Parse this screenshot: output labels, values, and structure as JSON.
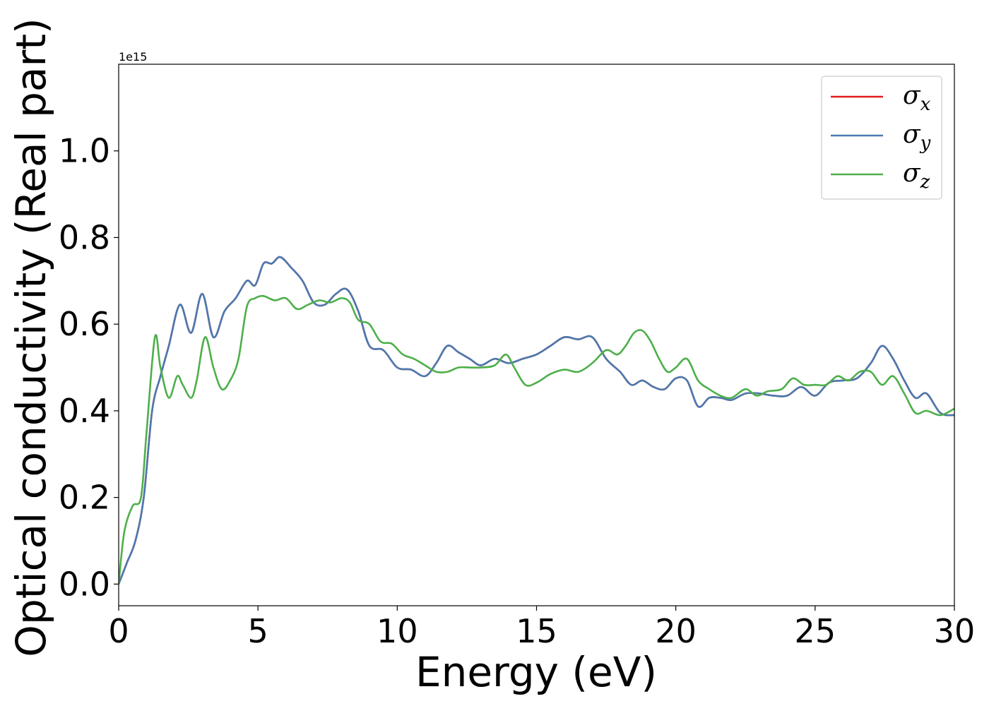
{
  "chart_data": {
    "type": "line",
    "xlabel": "Energy (eV)",
    "ylabel": "Optical conductivity (Real part)",
    "offset_text": "1e15",
    "xlim": [
      0,
      30
    ],
    "ylim": [
      -0.05,
      1.2
    ],
    "xticks": [
      0,
      5,
      10,
      15,
      20,
      25,
      30
    ],
    "xtick_labels": [
      "0",
      "5",
      "10",
      "15",
      "20",
      "25",
      "30"
    ],
    "yticks": [
      0.0,
      0.2,
      0.4,
      0.6,
      0.8,
      1.0
    ],
    "ytick_labels": [
      "0.0",
      "0.2",
      "0.4",
      "0.6",
      "0.8",
      "1.0"
    ],
    "grid": false,
    "legend_position": "top-right",
    "series": [
      {
        "name": "σx",
        "legend_base": "σ",
        "legend_sub": "x",
        "color": "#e41a1c",
        "x": [
          0,
          0.3,
          0.6,
          0.9,
          1.2,
          1.5,
          1.8,
          2.2,
          2.6,
          3.0,
          3.4,
          3.8,
          4.2,
          4.6,
          4.9,
          5.2,
          5.5,
          5.8,
          6.2,
          6.6,
          7.0,
          7.4,
          7.8,
          8.2,
          8.6,
          9.0,
          9.5,
          10.0,
          10.5,
          11.0,
          11.4,
          11.8,
          12.2,
          12.6,
          13.0,
          13.5,
          14.0,
          14.5,
          15.0,
          15.5,
          16.0,
          16.5,
          17.0,
          17.5,
          18.0,
          18.4,
          18.8,
          19.2,
          19.6,
          20.0,
          20.4,
          20.8,
          21.2,
          21.6,
          22.0,
          22.5,
          23.0,
          23.5,
          24.0,
          24.5,
          25.0,
          25.5,
          26.0,
          26.5,
          27.0,
          27.4,
          27.8,
          28.2,
          28.6,
          29.0,
          29.5,
          30.0
        ],
        "y": [
          0.0,
          0.05,
          0.1,
          0.2,
          0.4,
          0.48,
          0.55,
          0.645,
          0.58,
          0.67,
          0.57,
          0.63,
          0.66,
          0.7,
          0.69,
          0.74,
          0.74,
          0.755,
          0.73,
          0.7,
          0.65,
          0.645,
          0.67,
          0.68,
          0.63,
          0.55,
          0.54,
          0.5,
          0.495,
          0.48,
          0.51,
          0.55,
          0.535,
          0.52,
          0.505,
          0.52,
          0.51,
          0.52,
          0.53,
          0.55,
          0.57,
          0.565,
          0.57,
          0.52,
          0.49,
          0.46,
          0.47,
          0.455,
          0.45,
          0.475,
          0.47,
          0.41,
          0.43,
          0.43,
          0.425,
          0.44,
          0.44,
          0.435,
          0.435,
          0.455,
          0.435,
          0.465,
          0.47,
          0.475,
          0.51,
          0.55,
          0.52,
          0.47,
          0.43,
          0.44,
          0.395,
          0.39
        ]
      },
      {
        "name": "σy",
        "legend_base": "σ",
        "legend_sub": "y",
        "color": "#4a7ab0",
        "x": [
          0,
          0.3,
          0.6,
          0.9,
          1.2,
          1.5,
          1.8,
          2.2,
          2.6,
          3.0,
          3.4,
          3.8,
          4.2,
          4.6,
          4.9,
          5.2,
          5.5,
          5.8,
          6.2,
          6.6,
          7.0,
          7.4,
          7.8,
          8.2,
          8.6,
          9.0,
          9.5,
          10.0,
          10.5,
          11.0,
          11.4,
          11.8,
          12.2,
          12.6,
          13.0,
          13.5,
          14.0,
          14.5,
          15.0,
          15.5,
          16.0,
          16.5,
          17.0,
          17.5,
          18.0,
          18.4,
          18.8,
          19.2,
          19.6,
          20.0,
          20.4,
          20.8,
          21.2,
          21.6,
          22.0,
          22.5,
          23.0,
          23.5,
          24.0,
          24.5,
          25.0,
          25.5,
          26.0,
          26.5,
          27.0,
          27.4,
          27.8,
          28.2,
          28.6,
          29.0,
          29.5,
          30.0
        ],
        "y": [
          0.0,
          0.05,
          0.1,
          0.2,
          0.4,
          0.48,
          0.55,
          0.645,
          0.58,
          0.67,
          0.57,
          0.63,
          0.66,
          0.7,
          0.69,
          0.74,
          0.74,
          0.755,
          0.73,
          0.7,
          0.65,
          0.645,
          0.67,
          0.68,
          0.63,
          0.55,
          0.54,
          0.5,
          0.495,
          0.48,
          0.51,
          0.55,
          0.535,
          0.52,
          0.505,
          0.52,
          0.51,
          0.52,
          0.53,
          0.55,
          0.57,
          0.565,
          0.57,
          0.52,
          0.49,
          0.46,
          0.47,
          0.455,
          0.45,
          0.475,
          0.47,
          0.41,
          0.43,
          0.43,
          0.425,
          0.44,
          0.44,
          0.435,
          0.435,
          0.455,
          0.435,
          0.465,
          0.47,
          0.475,
          0.51,
          0.55,
          0.52,
          0.47,
          0.43,
          0.44,
          0.395,
          0.39
        ]
      },
      {
        "name": "σz",
        "legend_base": "σ",
        "legend_sub": "z",
        "color": "#4daf4a",
        "x": [
          0,
          0.2,
          0.5,
          0.8,
          1.0,
          1.3,
          1.5,
          1.8,
          2.1,
          2.3,
          2.6,
          2.8,
          3.1,
          3.4,
          3.7,
          4.0,
          4.3,
          4.6,
          4.9,
          5.2,
          5.6,
          6.0,
          6.4,
          6.8,
          7.2,
          7.6,
          8.0,
          8.3,
          8.6,
          9.0,
          9.4,
          9.8,
          10.2,
          10.6,
          11.0,
          11.4,
          11.8,
          12.2,
          12.6,
          13.0,
          13.5,
          13.9,
          14.2,
          14.6,
          15.0,
          15.5,
          16.0,
          16.5,
          17.0,
          17.5,
          17.9,
          18.2,
          18.5,
          18.8,
          19.1,
          19.4,
          19.7,
          20.0,
          20.4,
          20.8,
          21.2,
          21.6,
          22.0,
          22.5,
          22.9,
          23.3,
          23.8,
          24.2,
          24.6,
          25.0,
          25.4,
          25.8,
          26.2,
          26.6,
          27.0,
          27.4,
          27.8,
          28.2,
          28.6,
          29.0,
          29.5,
          30.0
        ],
        "y": [
          0.0,
          0.12,
          0.18,
          0.2,
          0.35,
          0.57,
          0.5,
          0.43,
          0.48,
          0.46,
          0.43,
          0.47,
          0.57,
          0.5,
          0.45,
          0.47,
          0.52,
          0.64,
          0.66,
          0.665,
          0.655,
          0.66,
          0.635,
          0.645,
          0.655,
          0.65,
          0.66,
          0.65,
          0.61,
          0.6,
          0.56,
          0.555,
          0.53,
          0.52,
          0.505,
          0.49,
          0.49,
          0.5,
          0.5,
          0.5,
          0.505,
          0.53,
          0.5,
          0.46,
          0.465,
          0.485,
          0.495,
          0.49,
          0.51,
          0.54,
          0.53,
          0.55,
          0.58,
          0.585,
          0.56,
          0.52,
          0.49,
          0.5,
          0.52,
          0.47,
          0.45,
          0.435,
          0.43,
          0.45,
          0.435,
          0.445,
          0.45,
          0.475,
          0.46,
          0.46,
          0.46,
          0.48,
          0.47,
          0.49,
          0.49,
          0.46,
          0.48,
          0.44,
          0.395,
          0.4,
          0.39,
          0.405
        ]
      }
    ]
  }
}
